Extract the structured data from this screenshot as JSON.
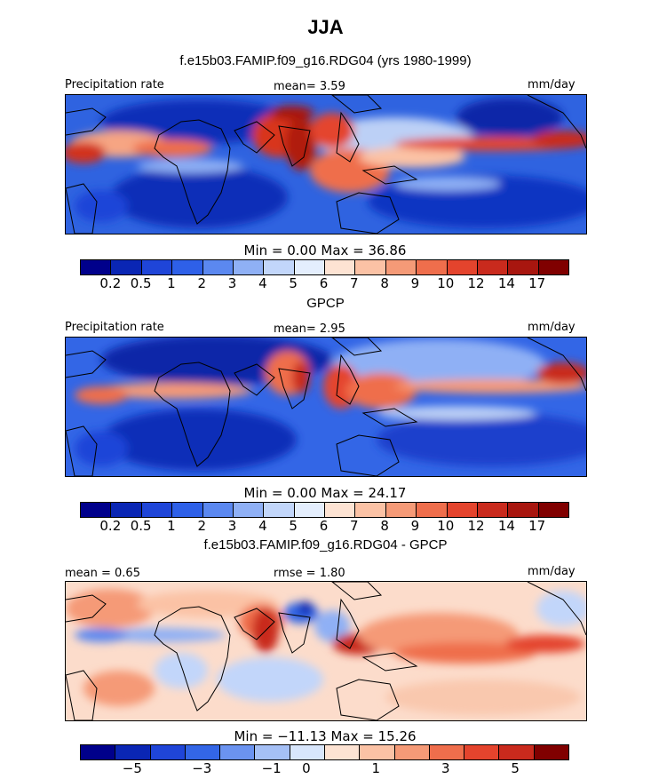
{
  "title": "JJA",
  "panel1": {
    "subtitle": "f.e15b03.FAMIP.f09_g16.RDG04 (yrs 1980-1999)",
    "left_label": "Precipitation rate",
    "center_label": "mean=    3.59",
    "right_label": "mm/day",
    "minmax": "Min =    0.00  Max =   36.86",
    "colorbar_labels": [
      "0.2",
      "0.5",
      "1",
      "2",
      "3",
      "4",
      "5",
      "6",
      "7",
      "8",
      "9",
      "10",
      "12",
      "14",
      "17"
    ]
  },
  "panel2": {
    "subtitle": "GPCP",
    "left_label": "Precipitation rate",
    "center_label": "mean=    2.95",
    "right_label": "mm/day",
    "minmax": "Min =    0.00  Max =   24.17",
    "colorbar_labels": [
      "0.2",
      "0.5",
      "1",
      "2",
      "3",
      "4",
      "5",
      "6",
      "7",
      "8",
      "9",
      "10",
      "12",
      "14",
      "17"
    ]
  },
  "panel3": {
    "subtitle": "f.e15b03.FAMIP.f09_g16.RDG04 - GPCP",
    "left_label": "mean =    0.65",
    "center_label": "rmse =    1.80",
    "right_label": "mm/day",
    "minmax": "Min =  −11.13  Max =   15.26",
    "colorbar_labels": [
      "−5",
      "−3",
      "−1",
      "0",
      "1",
      "3",
      "5"
    ]
  },
  "colors": {
    "precip_scale": [
      "#00008b",
      "#0a26b4",
      "#1f45d8",
      "#2e60e8",
      "#5b88f0",
      "#8fb0f5",
      "#c2d6fa",
      "#e4eefd",
      "#fde3d3",
      "#fbc2a5",
      "#f59a77",
      "#ef6e4c",
      "#e4442d",
      "#c92a1d",
      "#a8160f",
      "#800000"
    ],
    "diff_scale": [
      "#00008b",
      "#0a26b4",
      "#1f45d8",
      "#3366e6",
      "#6b93f0",
      "#a5c0f6",
      "#d8e6fc",
      "#fde3d3",
      "#fbc2a5",
      "#f59a77",
      "#ef6e4c",
      "#e4442d",
      "#c92a1d",
      "#800000"
    ]
  }
}
